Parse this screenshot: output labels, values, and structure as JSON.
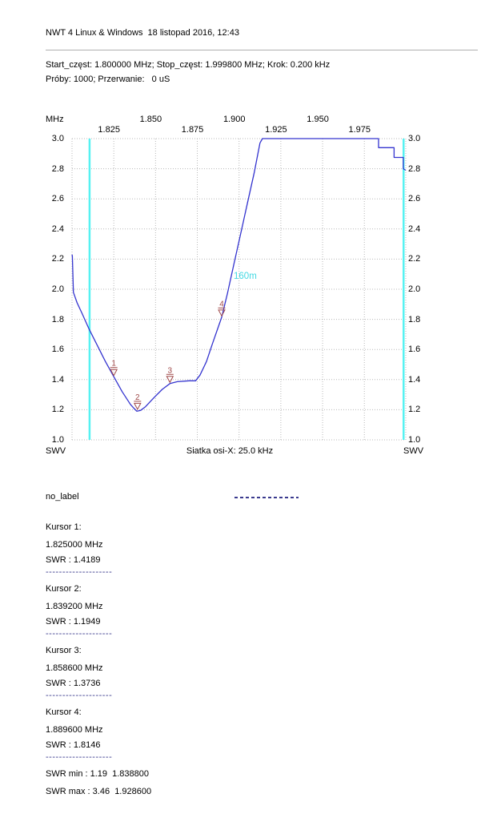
{
  "header": {
    "title": "NWT 4 Linux & Windows  18 listopad 2016, 12:43",
    "sweep_line": "Start_częst: 1.800000 MHz; Stop_częst: 1.999800 MHz; Krok: 0.200 kHz",
    "samples_line": "Próby: 1000; Przerwanie:   0 uS"
  },
  "colors": {
    "trace": "#3434cf",
    "band_marker": "#55f2f2",
    "band_label": "#43d9e3",
    "cursor_marker": "#a04a4a",
    "grid": "#b8b8b8",
    "separator": "#3a3a8e",
    "divider": "#b0b0b0",
    "background": "#ffffff"
  },
  "chart_data": {
    "type": "line",
    "xlabel_unit": "MHz",
    "ylabel": "SWV",
    "footer_label": "Siatka osi-X: 25.0 kHz",
    "xlim": [
      1.8,
      1.9998
    ],
    "ylim": [
      1.0,
      3.0
    ],
    "grid": true,
    "x_tick_step_khz": 25.0,
    "x_ticks": [
      {
        "label": "1.825",
        "mhz": 1.825,
        "row": 2
      },
      {
        "label": "1.850",
        "mhz": 1.85,
        "row": 1
      },
      {
        "label": "1.875",
        "mhz": 1.875,
        "row": 2
      },
      {
        "label": "1.900",
        "mhz": 1.9,
        "row": 1
      },
      {
        "label": "1.925",
        "mhz": 1.925,
        "row": 2
      },
      {
        "label": "1.950",
        "mhz": 1.95,
        "row": 1
      },
      {
        "label": "1.975",
        "mhz": 1.975,
        "row": 2
      }
    ],
    "y_ticks": [
      "3.0",
      "2.8",
      "2.6",
      "2.4",
      "2.2",
      "2.0",
      "1.8",
      "1.6",
      "1.4",
      "1.2",
      "1.0"
    ],
    "y_grid_step": 0.2,
    "band": {
      "label": "160m",
      "start_mhz": 1.8105,
      "end_mhz": 1.9985,
      "label_pos_mhz": 1.8968,
      "label_pos_swr": 2.07
    },
    "series": [
      {
        "name": "no_label",
        "points_mhz_swr": [
          [
            1.8,
            2.23
          ],
          [
            1.8002,
            2.22
          ],
          [
            1.8008,
            1.98
          ],
          [
            1.803,
            1.91
          ],
          [
            1.806,
            1.84
          ],
          [
            1.81,
            1.74
          ],
          [
            1.815,
            1.63
          ],
          [
            1.82,
            1.52
          ],
          [
            1.825,
            1.4189
          ],
          [
            1.83,
            1.32
          ],
          [
            1.835,
            1.235
          ],
          [
            1.837,
            1.21
          ],
          [
            1.8388,
            1.19
          ],
          [
            1.841,
            1.195
          ],
          [
            1.844,
            1.22
          ],
          [
            1.849,
            1.28
          ],
          [
            1.854,
            1.335
          ],
          [
            1.8586,
            1.3736
          ],
          [
            1.863,
            1.386
          ],
          [
            1.87,
            1.392
          ],
          [
            1.874,
            1.392
          ],
          [
            1.8766,
            1.43
          ],
          [
            1.8805,
            1.52
          ],
          [
            1.8838,
            1.63
          ],
          [
            1.8896,
            1.8146
          ],
          [
            1.893,
            1.97
          ],
          [
            1.897,
            2.17
          ],
          [
            1.901,
            2.37
          ],
          [
            1.905,
            2.57
          ],
          [
            1.909,
            2.77
          ],
          [
            1.9125,
            2.97
          ],
          [
            1.914,
            3.0
          ],
          [
            1.9835,
            3.0
          ],
          [
            1.9835,
            2.94
          ],
          [
            1.9928,
            2.94
          ],
          [
            1.9928,
            2.875
          ],
          [
            1.9983,
            2.875
          ],
          [
            1.9983,
            2.8
          ],
          [
            1.9998,
            2.79
          ]
        ]
      }
    ],
    "cursors": [
      {
        "n": "1",
        "mhz": 1.825,
        "swr": 1.4189
      },
      {
        "n": "2",
        "mhz": 1.8392,
        "swr": 1.1949
      },
      {
        "n": "3",
        "mhz": 1.8586,
        "swr": 1.3736
      },
      {
        "n": "4",
        "mhz": 1.8896,
        "swr": 1.8146
      }
    ],
    "swr_min": {
      "swr": 1.19,
      "mhz": 1.8388
    },
    "swr_max": {
      "swr": 3.46,
      "mhz": 1.9286
    }
  },
  "legend": {
    "trace_label": "no_label"
  },
  "cursor_info": [
    {
      "title": "Kursor 1:",
      "freq": "1.825000 MHz",
      "swr": "SWR : 1.4189",
      "separator": "--------------------"
    },
    {
      "title": "Kursor 2:",
      "freq": "1.839200 MHz",
      "swr": "SWR : 1.1949",
      "separator": "--------------------"
    },
    {
      "title": "Kursor 3:",
      "freq": "1.858600 MHz",
      "swr": "SWR : 1.3736",
      "separator": "--------------------"
    },
    {
      "title": "Kursor 4:",
      "freq": "1.889600 MHz",
      "swr": "SWR : 1.8146",
      "separator": "--------------------"
    }
  ],
  "stats": {
    "swr_min_line": "SWR min : 1.19  1.838800",
    "swr_max_line": "SWR max : 3.46  1.928600"
  }
}
